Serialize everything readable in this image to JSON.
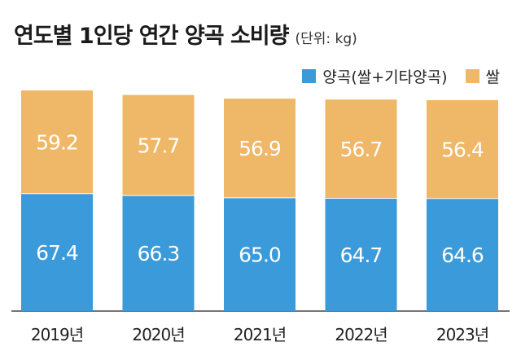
{
  "title": "연도별 1인당 연간 양곡 소비량",
  "unit": "(단위: kg)",
  "colors": {
    "grain": "#3b9ad9",
    "rice": "#efb768"
  },
  "chart_data": {
    "type": "bar",
    "stacked": true,
    "title": "연도별 1인당 연간 양곡 소비량",
    "categories": [
      "2019년",
      "2020년",
      "2021년",
      "2022년",
      "2023년"
    ],
    "series": [
      {
        "name": "양곡(쌀+기타양곡)",
        "color": "#3b9ad9",
        "values": [
          67.4,
          66.3,
          65.0,
          64.7,
          64.6
        ]
      },
      {
        "name": "쌀",
        "color": "#efb768",
        "values": [
          59.2,
          57.7,
          56.9,
          56.7,
          56.4
        ]
      }
    ],
    "value_labels": {
      "grain": [
        "67.4",
        "66.3",
        "65.0",
        "64.7",
        "64.6"
      ],
      "rice": [
        "59.2",
        "57.7",
        "56.9",
        "56.7",
        "56.4"
      ]
    },
    "legend_position": "top-right",
    "grid": false
  }
}
